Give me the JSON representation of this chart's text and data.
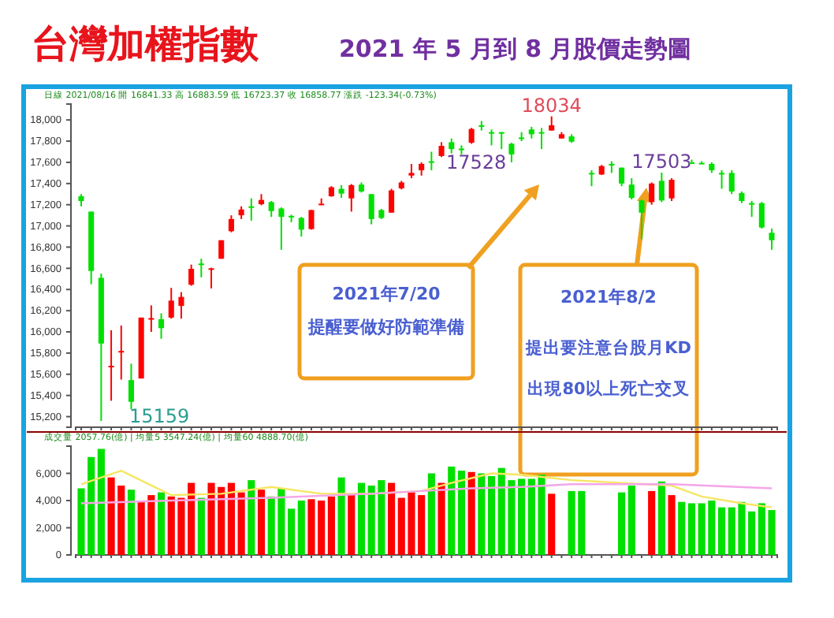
{
  "chart_data": [
    {
      "type": "candlestick",
      "title": "台灣加權指數",
      "subtitle": "2021 年 5 月到 8 月股價走勢圖",
      "categories": [
        null,
        null,
        null,
        null,
        null,
        null,
        null,
        null,
        null,
        null,
        null,
        null,
        null,
        null,
        null,
        null,
        null,
        null,
        null,
        null,
        null,
        null,
        null,
        null,
        null,
        null,
        null,
        null,
        null,
        null,
        null,
        null,
        null,
        null,
        null,
        null,
        null,
        null,
        null,
        null,
        null,
        null,
        null,
        null,
        null,
        null,
        null,
        null,
        null,
        null,
        null,
        null,
        null,
        null,
        null,
        null,
        null,
        null,
        null,
        null,
        null,
        null,
        null,
        null,
        null,
        null,
        null,
        null,
        null,
        null
      ],
      "ohlc": [
        [
          17280,
          17300,
          17185,
          17235
        ],
        [
          17135,
          17135,
          16450,
          16575
        ],
        [
          16510,
          16550,
          15159,
          15890
        ],
        [
          15665,
          16015,
          15350,
          15680
        ],
        [
          15810,
          16060,
          15550,
          15820
        ],
        [
          15545,
          15700,
          15270,
          15340
        ],
        [
          15560,
          16135,
          15560,
          16135
        ],
        [
          16120,
          16250,
          16000,
          16130
        ],
        [
          16120,
          16175,
          15935,
          16035
        ],
        [
          16135,
          16415,
          16125,
          16295
        ],
        [
          16245,
          16375,
          16125,
          16330
        ],
        [
          16445,
          16635,
          16435,
          16595
        ],
        [
          16645,
          16690,
          16515,
          16640
        ],
        [
          16590,
          16605,
          16410,
          16600
        ],
        [
          16690,
          16865,
          16690,
          16865
        ],
        [
          16950,
          17100,
          16940,
          17065
        ],
        [
          17100,
          17185,
          17065,
          17155
        ],
        [
          17185,
          17260,
          17050,
          17175
        ],
        [
          17205,
          17300,
          17195,
          17245
        ],
        [
          17225,
          17235,
          17085,
          17140
        ],
        [
          17165,
          17175,
          16775,
          17085
        ],
        [
          17095,
          17105,
          17035,
          17085
        ],
        [
          17075,
          17085,
          16900,
          16965
        ],
        [
          16970,
          17150,
          16965,
          17150
        ],
        [
          17205,
          17260,
          17195,
          17210
        ],
        [
          17280,
          17375,
          17275,
          17365
        ],
        [
          17350,
          17385,
          17265,
          17305
        ],
        [
          17260,
          17395,
          17135,
          17385
        ],
        [
          17390,
          17410,
          17315,
          17325
        ],
        [
          17300,
          17300,
          17015,
          17065
        ],
        [
          17150,
          17160,
          17065,
          17075
        ],
        [
          17125,
          17350,
          17125,
          17335
        ],
        [
          17355,
          17425,
          17345,
          17410
        ],
        [
          17475,
          17585,
          17450,
          17500
        ],
        [
          17525,
          17600,
          17475,
          17585
        ],
        [
          17610,
          17700,
          17525,
          17605
        ],
        [
          17660,
          17790,
          17650,
          17755
        ],
        [
          17790,
          17825,
          17685,
          17725
        ],
        [
          17730,
          17760,
          17675,
          17725
        ],
        [
          17785,
          17925,
          17775,
          17915
        ],
        [
          17950,
          17990,
          17900,
          17945
        ],
        [
          17885,
          17910,
          17760,
          17880
        ],
        [
          17885,
          17885,
          17725,
          17880
        ],
        [
          17775,
          17785,
          17600,
          17675
        ],
        [
          17835,
          17885,
          17800,
          17830
        ],
        [
          17910,
          17935,
          17825,
          17865
        ],
        [
          17885,
          17925,
          17725,
          17880
        ],
        [
          17900,
          18034,
          17900,
          17950
        ],
        [
          17825,
          17885,
          17825,
          17865
        ],
        [
          17845,
          17865,
          17785,
          17795
        ],
        null,
        [
          17500,
          17525,
          17375,
          17490
        ],
        [
          17485,
          17575,
          17480,
          17565
        ],
        [
          17585,
          17610,
          17500,
          17580
        ],
        [
          17550,
          17550,
          17375,
          17400
        ],
        [
          17390,
          17450,
          17250,
          17265
        ],
        [
          17240,
          17250,
          16875,
          17125
        ],
        [
          17225,
          17410,
          17200,
          17400
        ],
        [
          17425,
          17503,
          17225,
          17240
        ],
        [
          17260,
          17450,
          17235,
          17435
        ],
        null,
        [
          17600,
          17625,
          17590,
          17595
        ],
        [
          17595,
          17610,
          17585,
          17590
        ],
        [
          17585,
          17600,
          17500,
          17525
        ],
        [
          17500,
          17525,
          17350,
          17495
        ],
        [
          17500,
          17525,
          17300,
          17325
        ],
        [
          17310,
          17325,
          17215,
          17235
        ],
        [
          17215,
          17235,
          17085,
          17210
        ],
        [
          17215,
          17225,
          16975,
          16985
        ],
        [
          16935,
          16975,
          16775,
          16865
        ]
      ],
      "colors": [
        "#00e000",
        "#00e000",
        "#00e000",
        "#ff0000",
        "#ff0000",
        "#00e000",
        "#ff0000",
        "#ff0000",
        "#00e000",
        "#ff0000",
        "#ff0000",
        "#ff0000",
        "#00e000",
        "#ff0000",
        "#ff0000",
        "#ff0000",
        "#ff0000",
        "#00e000",
        "#ff0000",
        "#00e000",
        "#00e000",
        "#00e000",
        "#00e000",
        "#ff0000",
        "#ff0000",
        "#ff0000",
        "#00e000",
        "#ff0000",
        "#00e000",
        "#00e000",
        "#00e000",
        "#ff0000",
        "#ff0000",
        "#ff0000",
        "#ff0000",
        "#00e000",
        "#ff0000",
        "#00e000",
        "#00e000",
        "#ff0000",
        "#00e000",
        "#00e000",
        "#00e000",
        "#00e000",
        "#00e000",
        "#00e000",
        "#00e000",
        "#ff0000",
        "#ff0000",
        "#00e000",
        null,
        "#00e000",
        "#ff0000",
        "#00e000",
        "#00e000",
        "#00e000",
        "#00e000",
        "#ff0000",
        "#00e000",
        "#ff0000",
        null,
        "#00e000",
        "#00e000",
        "#00e000",
        "#00e000",
        "#00e000",
        "#00e000",
        "#00e000",
        "#00e000",
        "#00e000"
      ],
      "ylim": [
        15100,
        18150
      ],
      "yticks": [
        {
          "value": 15200,
          "label": "15,200"
        },
        {
          "value": 15400,
          "label": "15,400"
        },
        {
          "value": 15600,
          "label": "15,600"
        },
        {
          "value": 15800,
          "label": "15,800"
        },
        {
          "value": 16000,
          "label": "16,000"
        },
        {
          "value": 16200,
          "label": "16,200"
        },
        {
          "value": 16400,
          "label": "16,400"
        },
        {
          "value": 16600,
          "label": "16,600"
        },
        {
          "value": 16800,
          "label": "16,800"
        },
        {
          "value": 17000,
          "label": "17,000"
        },
        {
          "value": 17200,
          "label": "17,200"
        },
        {
          "value": 17400,
          "label": "17,400"
        },
        {
          "value": 17600,
          "label": "17,600"
        },
        {
          "value": 17800,
          "label": "17,800"
        },
        {
          "value": 18000,
          "label": "18,000"
        }
      ],
      "tick_labels": "y",
      "annotations": [
        "日線 2021/08/16 開 16841.33 高 16883.59 低 16723.37 收 16858.77 漲跌 -123.34(-0.73%)",
        "2021年7/20",
        "提醒要做好防範準備",
        "2021年8/2",
        "提出要注意台股月KD出現80以上死亡交叉",
        {
          "text": "18034",
          "y": 18034
        },
        "17528",
        {
          "text": "17503",
          "y": 17503
        },
        "15159"
      ]
    },
    {
      "type": "bar",
      "categories": [
        null,
        null,
        null,
        null,
        null,
        null,
        null,
        null,
        null,
        null,
        null,
        null,
        null,
        null,
        null,
        null,
        null,
        null,
        null,
        null,
        null,
        null,
        null,
        null,
        null,
        null,
        null,
        null,
        null,
        null,
        null,
        null,
        null,
        null,
        null,
        null,
        null,
        null,
        null,
        null,
        null,
        null,
        null,
        null,
        null,
        null,
        null,
        null,
        null,
        null,
        null,
        null,
        null,
        null,
        null,
        null,
        null,
        null,
        null,
        null,
        null,
        null,
        null,
        null,
        null,
        null,
        null,
        null,
        null,
        null
      ],
      "series": [
        {
          "type": "bar",
          "values": [
            4900,
            7200,
            7800,
            5700,
            5100,
            4800,
            4000,
            4400,
            4600,
            4300,
            4200,
            5300,
            4200,
            5300,
            5000,
            5300,
            4600,
            5500,
            4800,
            4300,
            4900,
            3400,
            4000,
            4100,
            4000,
            4300,
            5700,
            4400,
            5300,
            5100,
            5500,
            5300,
            4200,
            4700,
            4400,
            6000,
            5300,
            6500,
            6200,
            6100,
            6000,
            5800,
            6400,
            5500,
            5600,
            5600,
            5900,
            4500,
            null,
            4700,
            4700,
            null,
            null,
            null,
            4600,
            5100,
            null,
            4700,
            5400,
            4400,
            3900,
            3800,
            3800,
            4000,
            3500,
            3500,
            3900,
            3200,
            3800,
            3300
          ],
          "colors": [
            "#00e000",
            "#00e000",
            "#00e000",
            "#ff0000",
            "#ff0000",
            "#00e000",
            "#ff0000",
            "#ff0000",
            "#00e000",
            "#ff0000",
            "#ff0000",
            "#ff0000",
            "#00e000",
            "#ff0000",
            "#ff0000",
            "#ff0000",
            "#ff0000",
            "#00e000",
            "#ff0000",
            "#00e000",
            "#00e000",
            "#00e000",
            "#00e000",
            "#ff0000",
            "#ff0000",
            "#ff0000",
            "#00e000",
            "#ff0000",
            "#00e000",
            "#00e000",
            "#00e000",
            "#ff0000",
            "#ff0000",
            "#ff0000",
            "#ff0000",
            "#00e000",
            "#ff0000",
            "#00e000",
            "#00e000",
            "#ff0000",
            "#00e000",
            "#00e000",
            "#00e000",
            "#00e000",
            "#00e000",
            "#00e000",
            "#00e000",
            "#ff0000",
            null,
            "#00e000",
            "#00e000",
            null,
            null,
            null,
            "#00e000",
            "#00e000",
            null,
            "#ff0000",
            "#00e000",
            "#ff0000",
            "#00e000",
            "#00e000",
            "#00e000",
            "#00e000",
            "#00e000",
            "#00e000",
            "#00e000",
            "#00e000",
            "#00e000",
            "#00e000"
          ]
        },
        {
          "type": "line",
          "color": "#f5e663",
          "values": [
            5200,
            null,
            null,
            null,
            6200,
            null,
            null,
            null,
            null,
            4400,
            null,
            null,
            null,
            null,
            4500,
            null,
            null,
            null,
            null,
            5000,
            null,
            null,
            null,
            null,
            4500,
            null,
            null,
            null,
            null,
            4500,
            null,
            null,
            null,
            null,
            4700,
            null,
            null,
            5300,
            null,
            null,
            null,
            6000,
            null,
            null,
            5900,
            null,
            null,
            null,
            null,
            5500,
            null,
            null,
            null,
            null,
            5300,
            null,
            null,
            null,
            null,
            5100,
            null,
            null,
            4300,
            null,
            null,
            null,
            3800,
            null,
            null,
            3500
          ]
        },
        {
          "type": "line",
          "color": "#f4a6e8",
          "values": [
            3800,
            null,
            null,
            null,
            null,
            null,
            null,
            null,
            null,
            4000,
            null,
            null,
            null,
            null,
            null,
            null,
            null,
            null,
            null,
            4200,
            null,
            null,
            null,
            null,
            null,
            null,
            null,
            null,
            null,
            4500,
            null,
            null,
            null,
            null,
            null,
            null,
            null,
            null,
            null,
            4900,
            null,
            null,
            null,
            null,
            5000,
            null,
            null,
            null,
            null,
            5200,
            null,
            null,
            null,
            null,
            null,
            null,
            null,
            null,
            null,
            5200,
            null,
            null,
            null,
            null,
            null,
            null,
            null,
            null,
            null,
            4900
          ]
        }
      ],
      "ylim": [
        0,
        8000
      ],
      "yticks": [
        {
          "value": 0,
          "label": "0"
        },
        {
          "value": 2000,
          "label": "2,000"
        },
        {
          "value": 4000,
          "label": "4,000"
        },
        {
          "value": 6000,
          "label": "6,000"
        }
      ],
      "tick_labels": "y",
      "annotations": [
        "成交量 2057.76(億) | 均量5 3547.24(億) | 均量60 4888.70(億)"
      ]
    }
  ]
}
